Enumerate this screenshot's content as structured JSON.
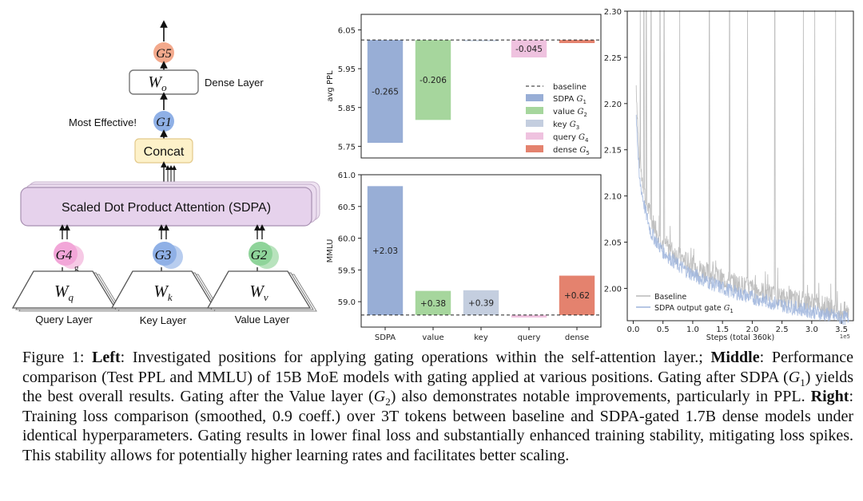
{
  "diagram": {
    "output_gate": "G5",
    "wo_label": "W",
    "wo_sub": "o",
    "dense_layer": "Dense Layer",
    "most_effective": "Most Effective!",
    "g1": "G1",
    "concat": "Concat",
    "sdpa": "Scaled Dot Product Attention (SDPA)",
    "g4": "G4",
    "g3": "G3",
    "g2": "G2",
    "wq": "W",
    "wq_sub": "q",
    "wk": "W",
    "wk_sub": "k",
    "wv": "W",
    "wv_sub": "v",
    "query_layer": "Query Layer",
    "key_layer": "Key Layer",
    "value_layer": "Value Layer",
    "stray_glyph": "g"
  },
  "colors": {
    "sdpa_blue": "#98aed6",
    "value_green": "#a6d69d",
    "key_grey": "#c4cedf",
    "query_pink": "#efc2df",
    "dense_red": "#e4826e",
    "gate_g5": "#f3a98c",
    "gate_g4": "#f2a6d8",
    "gate_g3": "#8fb0e6",
    "gate_g2": "#8fd49a",
    "concat_fill": "#fdf1c9",
    "sdpa_fill": "#e6d2ec"
  },
  "chart_data": [
    {
      "type": "bar",
      "ylabel": "avg PPL",
      "ylim": [
        5.72,
        6.09
      ],
      "yticks": [
        "6.05",
        "5.95",
        "5.85",
        "5.75"
      ],
      "baseline": 6.024,
      "categories": [
        "SDPA",
        "value",
        "key",
        "query",
        "dense"
      ],
      "values": [
        5.759,
        5.818,
        6.021,
        5.979,
        6.016
      ],
      "labels": [
        "-0.265",
        "-0.206",
        "",
        "-0.045",
        ""
      ],
      "legend": {
        "placement": "right",
        "baseline": "baseline",
        "entries": [
          {
            "name": "SDPA",
            "sub": "1"
          },
          {
            "name": "value",
            "sub": "2"
          },
          {
            "name": "key",
            "sub": "3"
          },
          {
            "name": "query",
            "sub": "4"
          },
          {
            "name": "dense",
            "sub": "5"
          }
        ]
      }
    },
    {
      "type": "bar",
      "ylabel": "MMLU",
      "ylim": [
        58.6,
        61.0
      ],
      "yticks": [
        "61.0",
        "60.5",
        "60.0",
        "59.5",
        "59.0",
        "58.5"
      ],
      "baseline": 58.79,
      "categories": [
        "SDPA",
        "value",
        "key",
        "query",
        "dense"
      ],
      "values": [
        60.82,
        59.17,
        59.18,
        58.75,
        59.41
      ],
      "labels": [
        "+2.03",
        "+0.38",
        "+0.39",
        "",
        "+0.62"
      ]
    },
    {
      "type": "line",
      "xlabel": "Steps (total 360k)",
      "x_exponent": "1e5",
      "xticks": [
        "0.0",
        "0.5",
        "1.0",
        "1.5",
        "2.0",
        "2.5",
        "3.0",
        "3.5"
      ],
      "yticks": [
        "2.30",
        "2.25",
        "2.20",
        "2.15",
        "2.10",
        "2.05",
        "2.00"
      ],
      "xlim": [
        -0.1,
        3.7
      ],
      "ylim": [
        1.965,
        2.3
      ],
      "series": [
        {
          "name": "Baseline",
          "color": "#b9b9b9",
          "x": [
            0.05,
            0.1,
            0.2,
            0.3,
            0.5,
            0.75,
            1.0,
            1.5,
            2.0,
            2.5,
            3.0,
            3.5
          ],
          "y": [
            2.22,
            2.14,
            2.1,
            2.075,
            2.05,
            2.035,
            2.025,
            2.01,
            2.0,
            1.99,
            1.985,
            1.975
          ]
        },
        {
          "name": "SDPA output gate",
          "color": "#9db4dc",
          "x": [
            0.05,
            0.1,
            0.2,
            0.3,
            0.5,
            0.75,
            1.0,
            1.5,
            2.0,
            2.5,
            3.0,
            3.5
          ],
          "y": [
            2.19,
            2.12,
            2.085,
            2.06,
            2.04,
            2.025,
            2.015,
            2.0,
            1.99,
            1.982,
            1.975,
            1.968
          ]
        }
      ],
      "legend_placement": "bottom-left"
    }
  ],
  "caption": {
    "fig": "Figure 1:",
    "left_b": "Left",
    "t1": ": Investigated positions for applying gating operations within the self-attention layer.;",
    "middle_b": "Middle",
    "t2": ": Performance comparison (Test PPL and MMLU) of 15B MoE models with gating applied at various positions. Gating after SDPA (",
    "t3": ") yields the best overall results. Gating after the Value layer (",
    "t4": ") also demonstrates notable improvements, particularly in PPL.",
    "right_b": "Right",
    "t5": ": Training loss comparison (smoothed, 0.9 coeff.) over 3T tokens between baseline and SDPA-gated 1.7B dense models under identical hyperparameters. Gating results in lower final loss and substantially enhanced training stability, mitigating loss spikes. This stability allows for potentially higher learning rates and facilitates better scaling.",
    "g_letter": "G",
    "sub1": "1",
    "sub2": "2"
  }
}
